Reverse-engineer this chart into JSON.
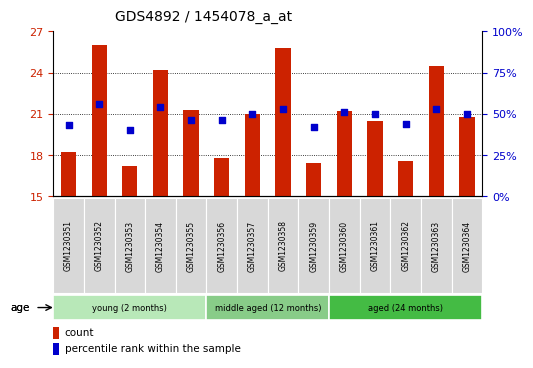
{
  "title": "GDS4892 / 1454078_a_at",
  "samples": [
    "GSM1230351",
    "GSM1230352",
    "GSM1230353",
    "GSM1230354",
    "GSM1230355",
    "GSM1230356",
    "GSM1230357",
    "GSM1230358",
    "GSM1230359",
    "GSM1230360",
    "GSM1230361",
    "GSM1230362",
    "GSM1230363",
    "GSM1230364"
  ],
  "bar_values": [
    18.2,
    26.0,
    17.2,
    24.2,
    21.3,
    17.8,
    21.0,
    25.8,
    17.4,
    21.2,
    20.5,
    17.6,
    24.5,
    20.8
  ],
  "percentile_values": [
    43,
    56,
    40,
    54,
    46,
    46,
    50,
    53,
    42,
    51,
    50,
    44,
    53,
    50
  ],
  "bar_color": "#cc2200",
  "percentile_color": "#0000cc",
  "ylim_left": [
    15,
    27
  ],
  "yticks_left": [
    15,
    18,
    21,
    24,
    27
  ],
  "ylim_right": [
    0,
    100
  ],
  "yticks_right": [
    0,
    25,
    50,
    75,
    100
  ],
  "ytick_labels_right": [
    "0%",
    "25%",
    "50%",
    "75%",
    "100%"
  ],
  "groups": [
    {
      "label": "young (2 months)",
      "start": 0,
      "end": 4
    },
    {
      "label": "middle aged (12 months)",
      "start": 5,
      "end": 8
    },
    {
      "label": "aged (24 months)",
      "start": 9,
      "end": 13
    }
  ],
  "group_colors": [
    "#b8e8b8",
    "#88cc88",
    "#44bb44"
  ],
  "age_label": "age",
  "legend_count": "count",
  "legend_percentile": "percentile rank within the sample",
  "background_color": "#ffffff",
  "plot_bg": "#ffffff",
  "title_fontsize": 10,
  "tick_fontsize": 8,
  "label_fontsize": 7
}
